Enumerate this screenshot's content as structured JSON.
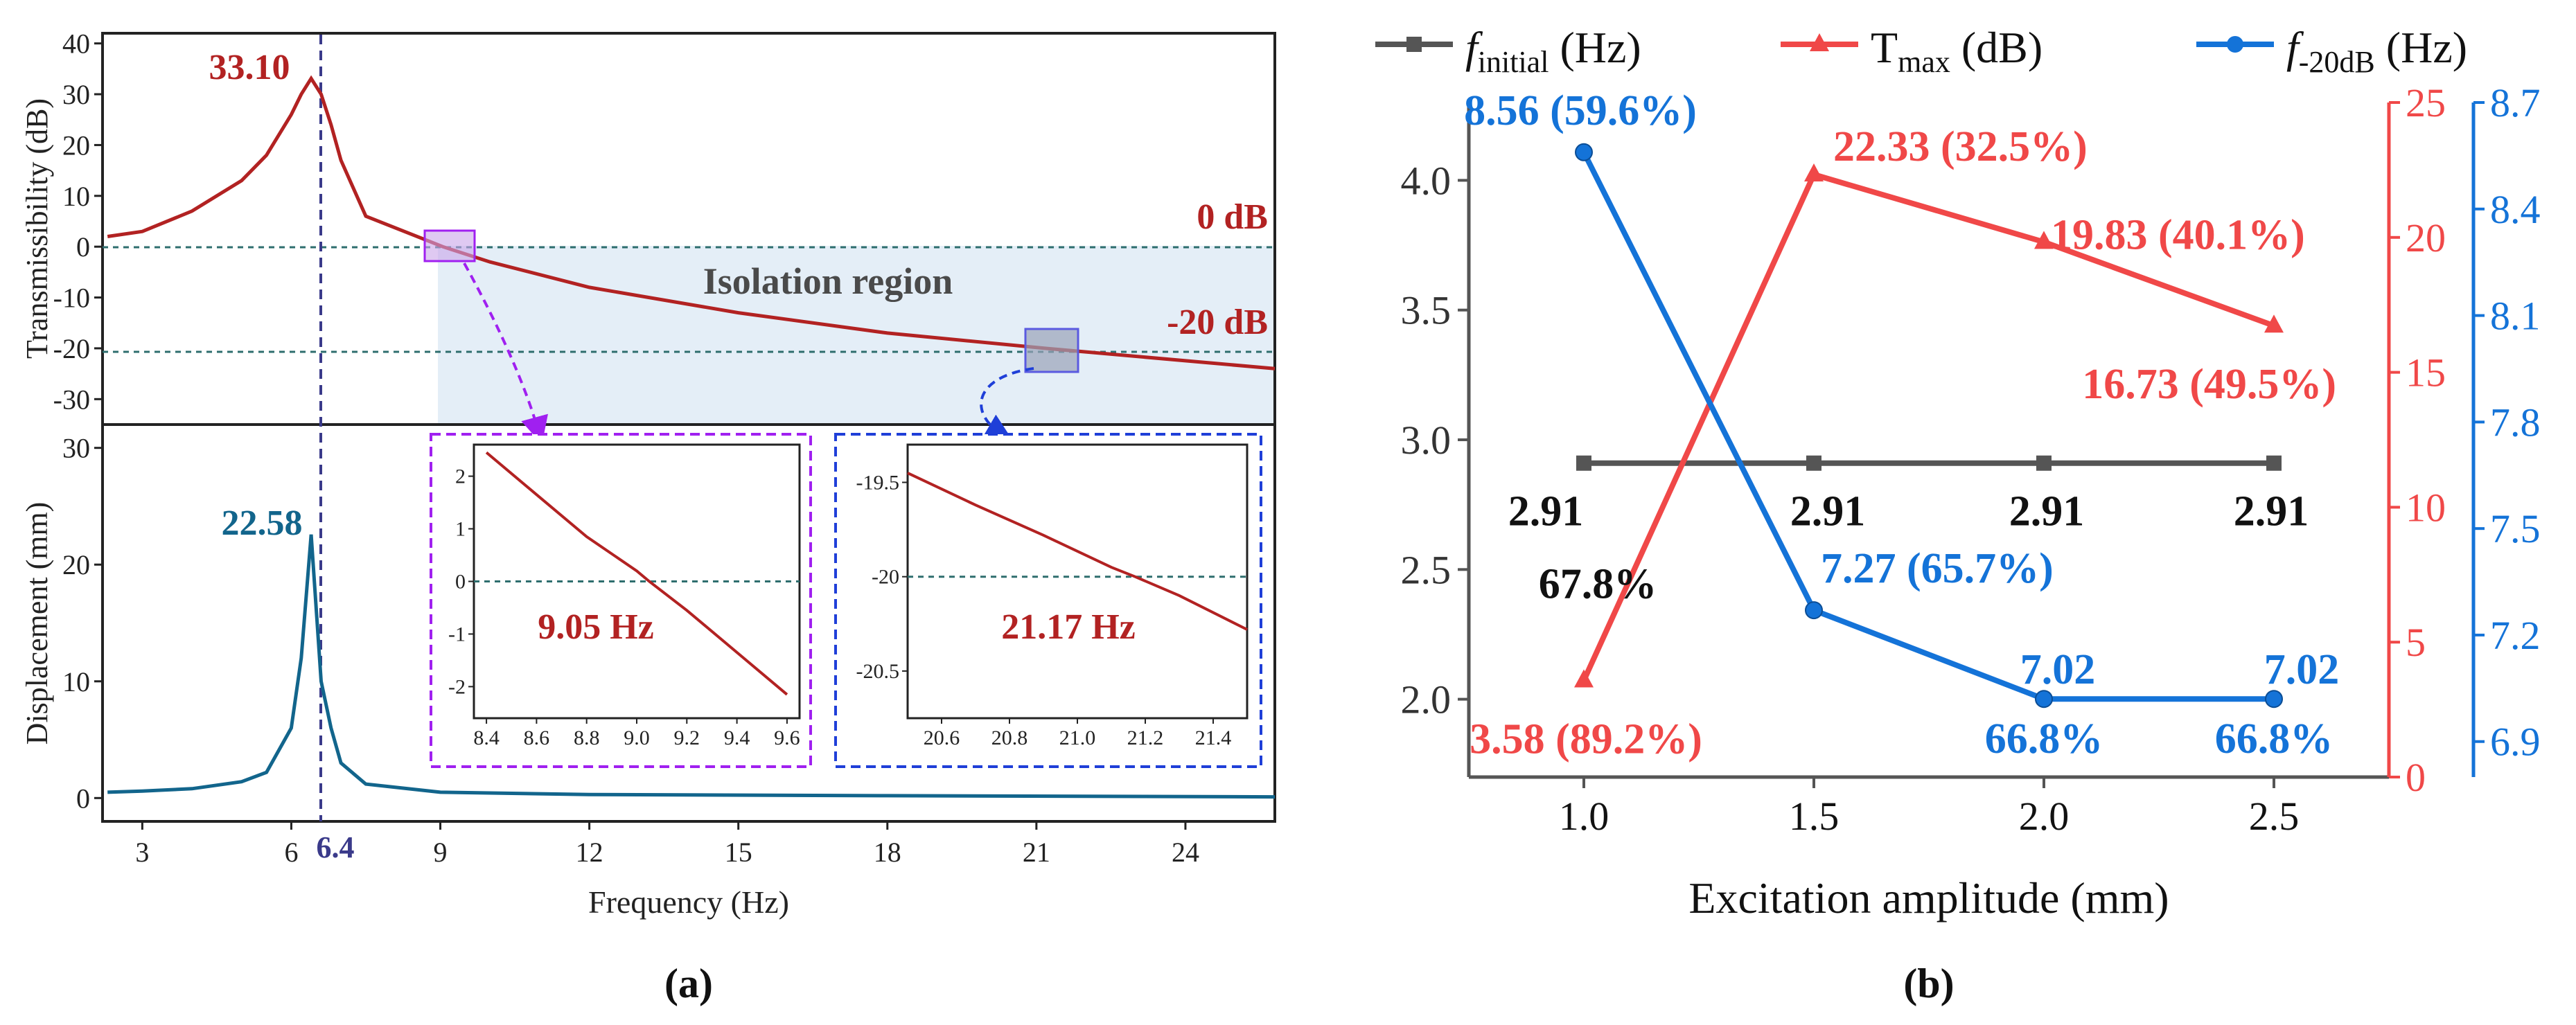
{
  "chart_data": [
    {
      "panel": "a-top",
      "type": "line",
      "xlabel": "",
      "ylabel": "Transmissibility (dB)",
      "xlim": [
        2.2,
        25.8
      ],
      "ylim": [
        -35,
        42
      ],
      "yticks": [
        -30,
        -20,
        -10,
        0,
        10,
        20,
        30,
        40
      ],
      "peak": {
        "x": 6.4,
        "y": 33.1,
        "label": "33.10"
      },
      "reference_lines": [
        {
          "y": 0,
          "label": "0 dB"
        },
        {
          "y": -20,
          "label": "-20 dB"
        }
      ],
      "region": {
        "x_from": 8.9,
        "label": "Isolation region"
      },
      "series": [
        {
          "name": "Transmissibility",
          "color": "#b22222",
          "x": [
            2.3,
            3,
            4,
            5,
            5.5,
            6,
            6.2,
            6.4,
            6.6,
            6.8,
            7,
            7.5,
            9.05,
            10,
            12,
            15,
            18,
            21.17,
            25.8
          ],
          "y": [
            2,
            3,
            7,
            13,
            18,
            26,
            30,
            33.1,
            30,
            24,
            17,
            6,
            0,
            -3,
            -8,
            -13,
            -17,
            -20,
            -24
          ]
        }
      ]
    },
    {
      "panel": "a-bottom",
      "type": "line",
      "xlabel": "Frequency (Hz)",
      "ylabel": "Displacement (mm)",
      "xlim": [
        2.2,
        25.8
      ],
      "ylim": [
        -2,
        32
      ],
      "xticks": [
        3,
        6,
        9,
        12,
        15,
        18,
        21,
        24
      ],
      "yticks": [
        0,
        10,
        20,
        30
      ],
      "peak": {
        "x": 6.4,
        "y": 22.58,
        "label": "22.58"
      },
      "marker_line": {
        "x": 6.4,
        "label": "6.4"
      },
      "series": [
        {
          "name": "Displacement",
          "color": "#12658c",
          "x": [
            2.3,
            3,
            4,
            5,
            5.5,
            6,
            6.2,
            6.4,
            6.6,
            6.8,
            7,
            7.5,
            9,
            12,
            18,
            25.8
          ],
          "y": [
            0.5,
            0.6,
            0.8,
            1.4,
            2.2,
            6,
            12,
            22.58,
            10,
            6,
            3,
            1.2,
            0.5,
            0.3,
            0.2,
            0.1
          ]
        }
      ],
      "insets": [
        {
          "type": "line",
          "xlim": [
            8.35,
            9.65
          ],
          "ylim": [
            -2.6,
            2.6
          ],
          "xticks": [
            8.4,
            8.6,
            8.8,
            9.0,
            9.2,
            9.4,
            9.6
          ],
          "yticks": [
            -2,
            -1,
            0,
            1,
            2
          ],
          "reference_y": 0,
          "annotation": "9.05 Hz",
          "series_x": [
            8.4,
            8.6,
            8.8,
            9.0,
            9.05,
            9.2,
            9.4,
            9.6
          ],
          "series_y": [
            2.45,
            1.65,
            0.85,
            0.2,
            0.0,
            -0.55,
            -1.35,
            -2.15
          ]
        },
        {
          "type": "line",
          "xlim": [
            20.5,
            21.5
          ],
          "ylim": [
            -20.75,
            -19.3
          ],
          "xticks": [
            20.6,
            20.8,
            21.0,
            21.2,
            21.4
          ],
          "yticks": [
            -19.5,
            -20.0,
            -20.5
          ],
          "reference_y": -20,
          "annotation": "21.17 Hz",
          "series_x": [
            20.5,
            20.7,
            20.9,
            21.1,
            21.17,
            21.3,
            21.5
          ],
          "series_y": [
            -19.45,
            -19.62,
            -19.78,
            -19.95,
            -20.0,
            -20.1,
            -20.28
          ]
        }
      ]
    },
    {
      "panel": "b",
      "type": "line",
      "xlabel": "Excitation amplitude (mm)",
      "categories": [
        1.0,
        1.5,
        2.0,
        2.5
      ],
      "xticks": [
        "1.0",
        "1.5",
        "2.0",
        "2.5"
      ],
      "xlim": [
        0.75,
        2.75
      ],
      "axes": {
        "left": {
          "ylim": [
            1.7,
            4.3
          ],
          "yticks": [
            "2.0",
            "2.5",
            "3.0",
            "3.5",
            "4.0"
          ],
          "color": "#333333"
        },
        "right1": {
          "ylim": [
            0,
            25
          ],
          "yticks": [
            "0",
            "5",
            "10",
            "15",
            "20",
            "25"
          ],
          "color": "#f04848"
        },
        "right2": {
          "ylim": [
            6.8,
            8.7
          ],
          "yticks": [
            "6.9",
            "7.2",
            "7.5",
            "7.8",
            "8.1",
            "8.4",
            "8.7"
          ],
          "color": "#1473d8"
        }
      },
      "series": [
        {
          "name": "f_initial (Hz)",
          "legend_main": "f",
          "legend_sub": "initial",
          "legend_unit": "(Hz)",
          "color": "#555555",
          "marker": "square",
          "axis": "left",
          "values": [
            2.91,
            2.91,
            2.91,
            2.91
          ]
        },
        {
          "name": "T_max (dB)",
          "legend_main": "T",
          "legend_sub": "max",
          "legend_unit": "(dB)",
          "color": "#f04848",
          "marker": "triangle",
          "axis": "right1",
          "values": [
            3.58,
            22.33,
            19.83,
            16.73
          ]
        },
        {
          "name": "f_-20dB (Hz)",
          "legend_main": "f",
          "legend_sub": "-20dB",
          "legend_unit": "(Hz)",
          "color": "#1473d8",
          "marker": "circle",
          "axis": "right2",
          "values": [
            8.56,
            7.27,
            7.02,
            7.02
          ]
        }
      ],
      "labels": {
        "f_initial": [
          "2.91",
          "2.91",
          "2.91",
          "2.91"
        ],
        "f_initial_pct": "67.8%",
        "t_max": [
          "3.58 (89.2%)",
          "22.33 (32.5%)",
          "19.83 (40.1%)",
          "16.73 (49.5%)"
        ],
        "f_20db": [
          "8.56 (59.6%)",
          "7.27 (65.7%)",
          "7.02",
          "7.02"
        ],
        "f_20db_pct": [
          "66.8%",
          "66.8%"
        ]
      }
    }
  ],
  "captions": {
    "a": "(a)",
    "b": "(b)"
  }
}
